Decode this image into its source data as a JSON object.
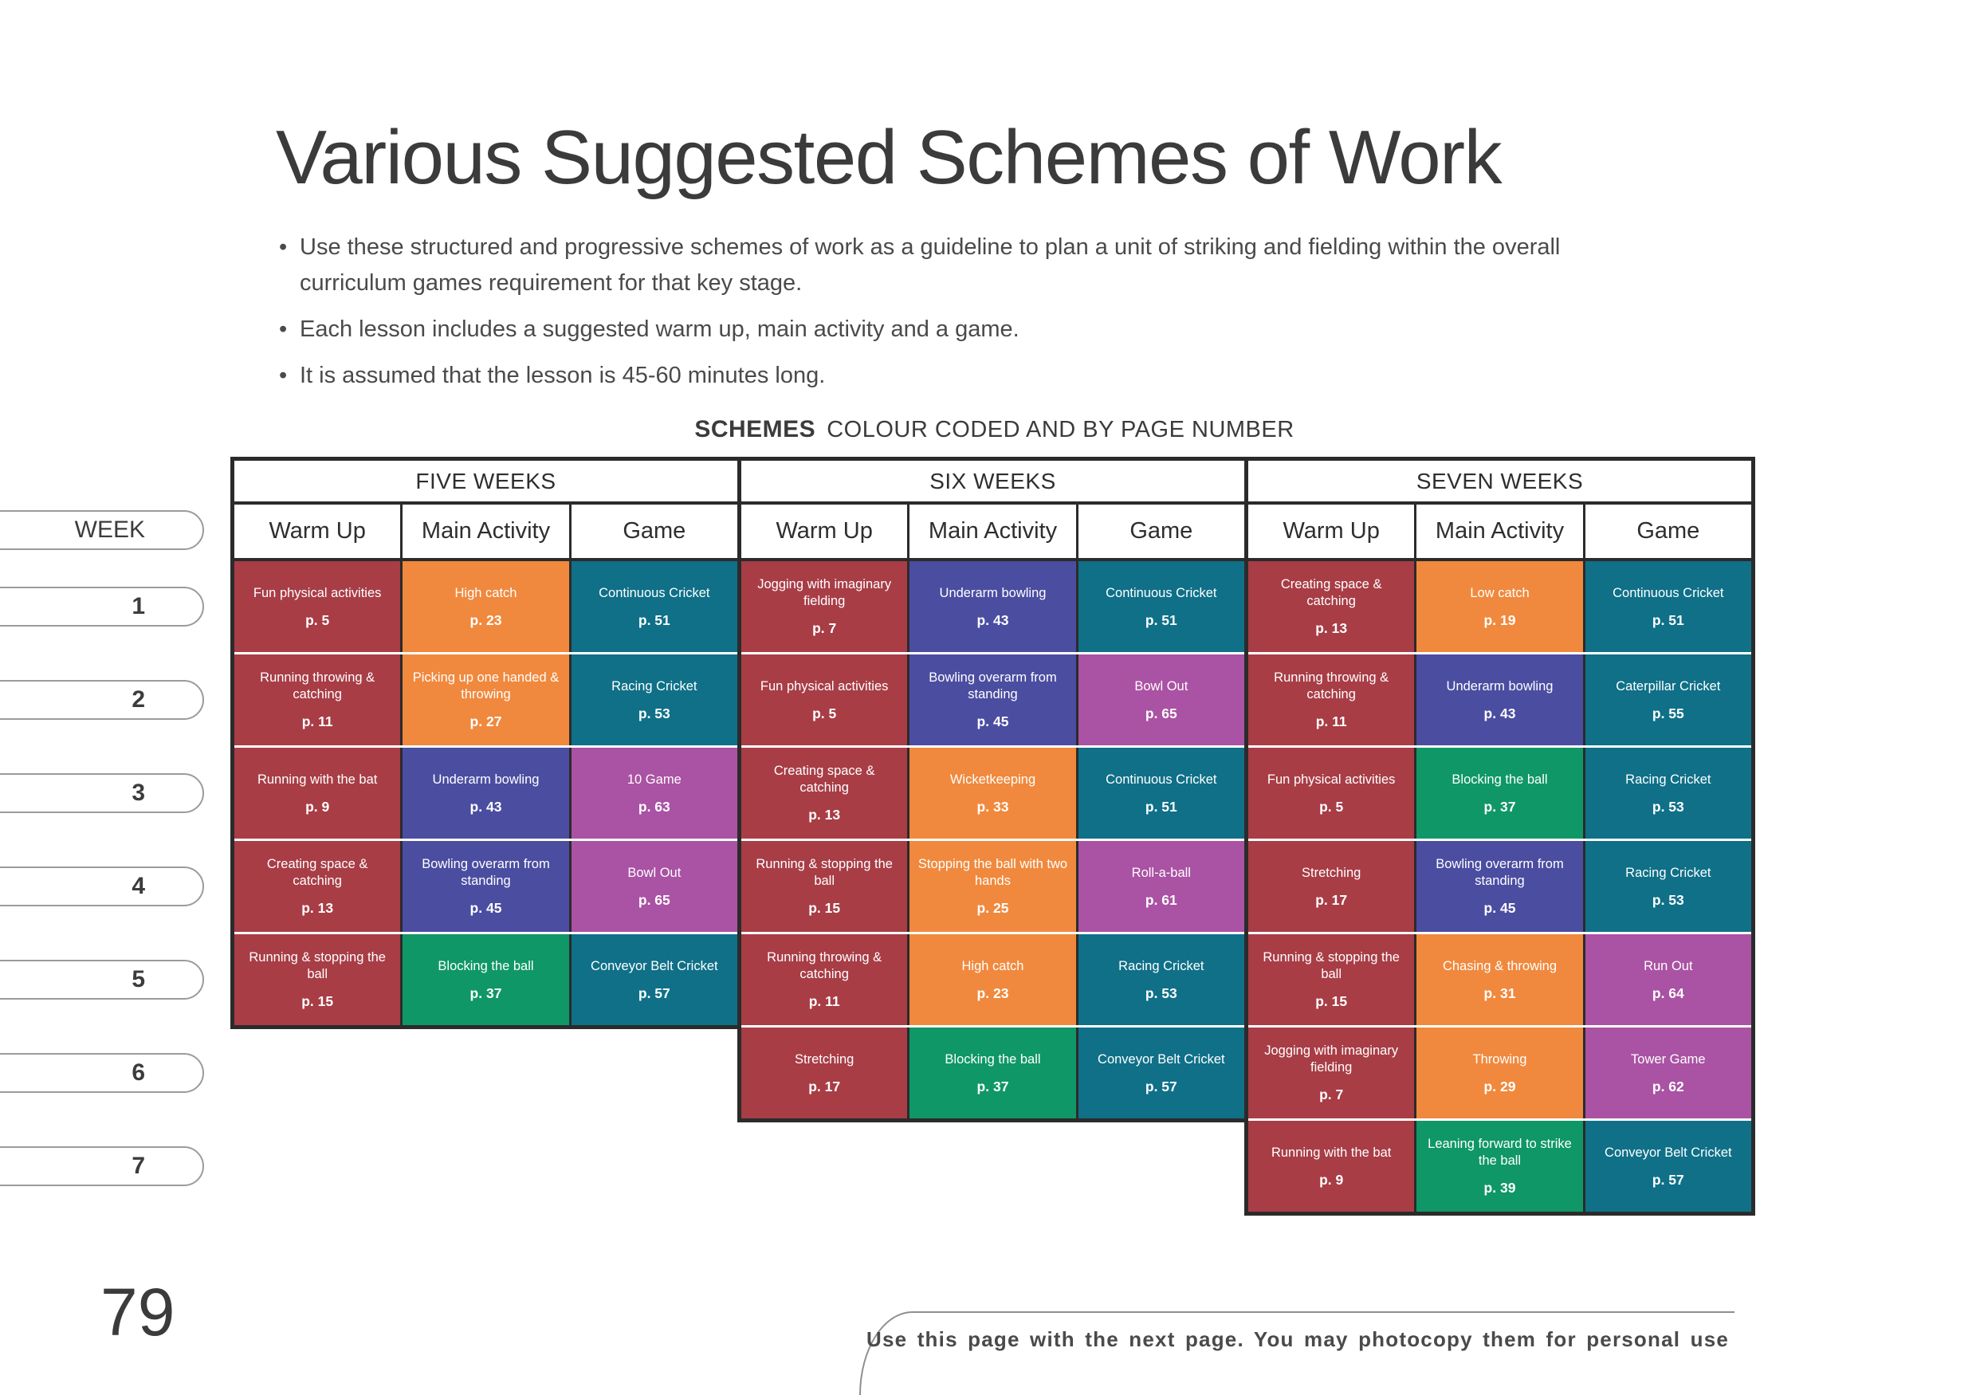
{
  "header": {
    "title": "Various Suggested Schemes of Work",
    "bullets": [
      "Use these structured and progressive schemes of work as a guideline to plan a unit of striking and fielding within the overall curriculum games requirement for that key stage.",
      "Each lesson includes a suggested warm up, main activity and a game.",
      "It is assumed that the lesson is 45-60 minutes long."
    ]
  },
  "schemes_heading": {
    "label": "SCHEMES",
    "subtitle": "COLOUR CODED AND BY PAGE NUMBER"
  },
  "table": {
    "week_label": "WEEK",
    "week_numbers": [
      "1",
      "2",
      "3",
      "4",
      "5",
      "6",
      "7"
    ],
    "column_headers": [
      "Warm Up",
      "Main Activity",
      "Game"
    ],
    "palette": {
      "red": "#A83D46",
      "orange": "#F0893D",
      "teal": "#0F7088",
      "indigo": "#4B4DA1",
      "green": "#0F9768",
      "purple": "#AA52A3"
    },
    "groups": [
      {
        "title": "FIVE WEEKS",
        "rows": [
          [
            {
              "name": "Fun physical activities",
              "page": "p. 5",
              "color": "red"
            },
            {
              "name": "High catch",
              "page": "p. 23",
              "color": "orange"
            },
            {
              "name": "Continuous Cricket",
              "page": "p. 51",
              "color": "teal"
            }
          ],
          [
            {
              "name": "Running throwing & catching",
              "page": "p. 11",
              "color": "red"
            },
            {
              "name": "Picking up one handed & throwing",
              "page": "p. 27",
              "color": "orange"
            },
            {
              "name": "Racing Cricket",
              "page": "p. 53",
              "color": "teal"
            }
          ],
          [
            {
              "name": "Running with the bat",
              "page": "p. 9",
              "color": "red"
            },
            {
              "name": "Underarm bowling",
              "page": "p. 43",
              "color": "indigo"
            },
            {
              "name": "10 Game",
              "page": "p. 63",
              "color": "purple"
            }
          ],
          [
            {
              "name": "Creating space & catching",
              "page": "p. 13",
              "color": "red"
            },
            {
              "name": "Bowling overarm from standing",
              "page": "p. 45",
              "color": "indigo"
            },
            {
              "name": "Bowl Out",
              "page": "p. 65",
              "color": "purple"
            }
          ],
          [
            {
              "name": "Running & stopping the ball",
              "page": "p. 15",
              "color": "red"
            },
            {
              "name": "Blocking the ball",
              "page": "p. 37",
              "color": "green"
            },
            {
              "name": "Conveyor Belt Cricket",
              "page": "p. 57",
              "color": "teal"
            }
          ]
        ]
      },
      {
        "title": "SIX WEEKS",
        "rows": [
          [
            {
              "name": "Jogging with imaginary fielding",
              "page": "p. 7",
              "color": "red"
            },
            {
              "name": "Underarm bowling",
              "page": "p. 43",
              "color": "indigo"
            },
            {
              "name": "Continuous Cricket",
              "page": "p. 51",
              "color": "teal"
            }
          ],
          [
            {
              "name": "Fun physical activities",
              "page": "p. 5",
              "color": "red"
            },
            {
              "name": "Bowling overarm from standing",
              "page": "p. 45",
              "color": "indigo"
            },
            {
              "name": "Bowl Out",
              "page": "p. 65",
              "color": "purple"
            }
          ],
          [
            {
              "name": "Creating space & catching",
              "page": "p. 13",
              "color": "red"
            },
            {
              "name": "Wicketkeeping",
              "page": "p. 33",
              "color": "orange"
            },
            {
              "name": "Continuous Cricket",
              "page": "p. 51",
              "color": "teal"
            }
          ],
          [
            {
              "name": "Running & stopping the ball",
              "page": "p. 15",
              "color": "red"
            },
            {
              "name": "Stopping the ball with two hands",
              "page": "p. 25",
              "color": "orange"
            },
            {
              "name": "Roll-a-ball",
              "page": "p. 61",
              "color": "purple"
            }
          ],
          [
            {
              "name": "Running throwing & catching",
              "page": "p. 11",
              "color": "red"
            },
            {
              "name": "High catch",
              "page": "p. 23",
              "color": "orange"
            },
            {
              "name": "Racing Cricket",
              "page": "p. 53",
              "color": "teal"
            }
          ],
          [
            {
              "name": "Stretching",
              "page": "p. 17",
              "color": "red"
            },
            {
              "name": "Blocking the ball",
              "page": "p. 37",
              "color": "green"
            },
            {
              "name": "Conveyor Belt Cricket",
              "page": "p. 57",
              "color": "teal"
            }
          ]
        ]
      },
      {
        "title": "SEVEN WEEKS",
        "rows": [
          [
            {
              "name": "Creating space & catching",
              "page": "p. 13",
              "color": "red"
            },
            {
              "name": "Low catch",
              "page": "p. 19",
              "color": "orange"
            },
            {
              "name": "Continuous Cricket",
              "page": "p. 51",
              "color": "teal"
            }
          ],
          [
            {
              "name": "Running throwing & catching",
              "page": "p. 11",
              "color": "red"
            },
            {
              "name": "Underarm bowling",
              "page": "p. 43",
              "color": "indigo"
            },
            {
              "name": "Caterpillar Cricket",
              "page": "p. 55",
              "color": "teal"
            }
          ],
          [
            {
              "name": "Fun physical activities",
              "page": "p. 5",
              "color": "red"
            },
            {
              "name": "Blocking the ball",
              "page": "p. 37",
              "color": "green"
            },
            {
              "name": "Racing Cricket",
              "page": "p. 53",
              "color": "teal"
            }
          ],
          [
            {
              "name": "Stretching",
              "page": "p. 17",
              "color": "red"
            },
            {
              "name": "Bowling overarm from standing",
              "page": "p. 45",
              "color": "indigo"
            },
            {
              "name": "Racing Cricket",
              "page": "p. 53",
              "color": "teal"
            }
          ],
          [
            {
              "name": "Running & stopping the ball",
              "page": "p. 15",
              "color": "red"
            },
            {
              "name": "Chasing & throwing",
              "page": "p. 31",
              "color": "orange"
            },
            {
              "name": "Run Out",
              "page": "p. 64",
              "color": "purple"
            }
          ],
          [
            {
              "name": "Jogging with imaginary fielding",
              "page": "p. 7",
              "color": "red"
            },
            {
              "name": "Throwing",
              "page": "p. 29",
              "color": "orange"
            },
            {
              "name": "Tower Game",
              "page": "p. 62",
              "color": "purple"
            }
          ],
          [
            {
              "name": "Running with the bat",
              "page": "p. 9",
              "color": "red"
            },
            {
              "name": "Leaning forward to strike the ball",
              "page": "p. 39",
              "color": "green"
            },
            {
              "name": "Conveyor Belt Cricket",
              "page": "p. 57",
              "color": "teal"
            }
          ]
        ]
      }
    ]
  },
  "footer": {
    "page_number": "79",
    "note": "Use this page with the next page. You may photocopy them for personal use"
  }
}
